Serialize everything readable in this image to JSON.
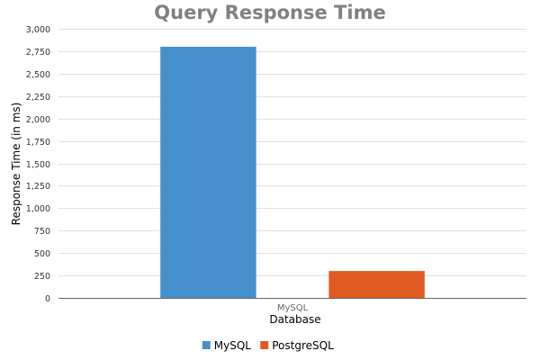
{
  "chart_data": {
    "type": "bar",
    "title": "Query Response Time",
    "xlabel": "Database",
    "ylabel": "Response Time (in ms)",
    "categories": [
      "MySQL"
    ],
    "ylim": [
      0,
      3000
    ],
    "yticks": [
      0,
      250,
      500,
      750,
      1000,
      1250,
      1500,
      1750,
      2000,
      2250,
      2500,
      2750,
      3000
    ],
    "yticks_labels": [
      "0",
      "250",
      "500",
      "750",
      "1,000",
      "1,250",
      "1,500",
      "1,750",
      "2,000",
      "2,250",
      "2,500",
      "2,750",
      "3,000"
    ],
    "grid": true,
    "legend_position": "bottom",
    "series": [
      {
        "name": "MySQL",
        "values": [
          2800
        ],
        "color": "#4690cd"
      },
      {
        "name": "PostgreSQL",
        "values": [
          300
        ],
        "color": "#e05a24"
      }
    ]
  }
}
